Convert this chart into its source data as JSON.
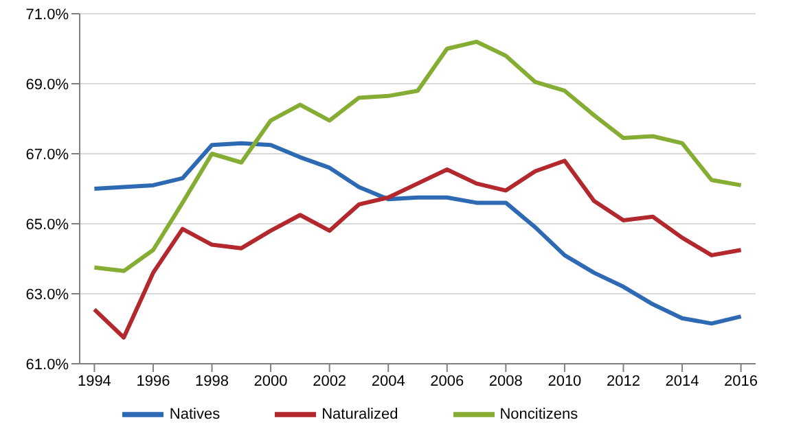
{
  "chart_data": {
    "type": "line",
    "x": [
      1994,
      1995,
      1996,
      1997,
      1998,
      1999,
      2000,
      2001,
      2002,
      2003,
      2004,
      2005,
      2006,
      2007,
      2008,
      2009,
      2010,
      2011,
      2012,
      2013,
      2014,
      2015,
      2016
    ],
    "xlim": [
      1993.5,
      2016.5
    ],
    "xticks": [
      1994,
      1996,
      1998,
      2000,
      2002,
      2004,
      2006,
      2008,
      2010,
      2012,
      2014,
      2016
    ],
    "ylim": [
      61,
      71
    ],
    "yticks": [
      {
        "value": 61,
        "label": "61.0%"
      },
      {
        "value": 63,
        "label": "63.0%"
      },
      {
        "value": 65,
        "label": "65.0%"
      },
      {
        "value": 67,
        "label": "67.0%"
      },
      {
        "value": 69,
        "label": "69.0%"
      },
      {
        "value": 71,
        "label": "71.0%"
      }
    ],
    "grid": "y",
    "legend": "bottom",
    "marker": "none",
    "line_style": "solid",
    "series": [
      {
        "name": "Natives",
        "color": "#2e6ab3",
        "values": [
          66.0,
          66.05,
          66.1,
          66.3,
          67.25,
          67.3,
          67.25,
          66.9,
          66.6,
          66.05,
          65.7,
          65.75,
          65.75,
          65.6,
          65.6,
          64.9,
          64.1,
          63.6,
          63.2,
          62.7,
          62.3,
          62.15,
          62.35
        ]
      },
      {
        "name": "Naturalized",
        "color": "#b3282d",
        "values": [
          62.55,
          61.75,
          63.6,
          64.85,
          64.4,
          64.3,
          64.8,
          65.25,
          64.8,
          65.55,
          65.75,
          66.15,
          66.55,
          66.15,
          65.95,
          66.5,
          66.8,
          65.65,
          65.1,
          65.2,
          64.6,
          64.1,
          64.25
        ]
      },
      {
        "name": "Noncitizens",
        "color": "#86ad33",
        "values": [
          63.75,
          63.65,
          64.25,
          65.6,
          67.0,
          66.75,
          67.95,
          68.4,
          67.95,
          68.6,
          68.65,
          68.8,
          70.0,
          70.2,
          69.8,
          69.05,
          68.8,
          68.1,
          67.45,
          67.5,
          67.3,
          66.25,
          66.1
        ]
      }
    ]
  }
}
